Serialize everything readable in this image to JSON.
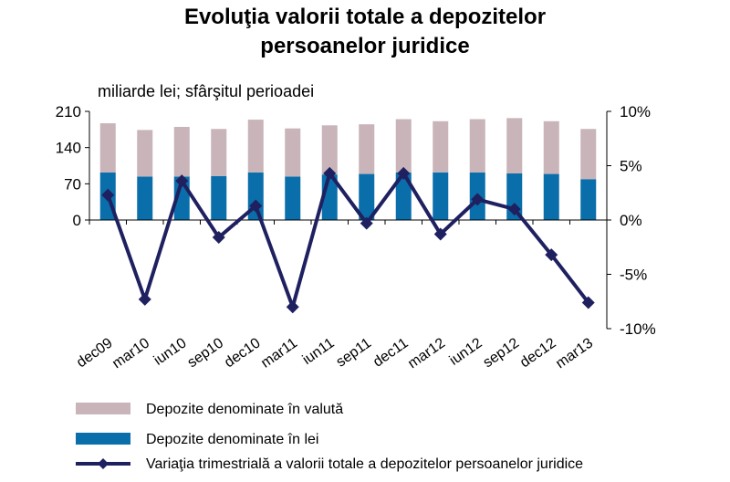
{
  "chart_data": {
    "type": "bar+line",
    "title_line1": "Evoluţia valorii totale a depozitelor",
    "title_line2": "persoanelor juridice",
    "unit_label": "miliarde lei; sfârşitul perioadei",
    "categories": [
      "dec09",
      "mar10",
      "iun10",
      "sep10",
      "dec10",
      "mar11",
      "iun11",
      "sep11",
      "dec11",
      "mar12",
      "iun12",
      "sep12",
      "dec12",
      "mar13"
    ],
    "left_axis": {
      "min": 0,
      "max": 210,
      "ticks": [
        0,
        70,
        140,
        210
      ],
      "tick_labels": [
        "0",
        "70",
        "140",
        "210"
      ]
    },
    "right_axis": {
      "min": -10,
      "max": 10,
      "ticks": [
        -10,
        -5,
        0,
        5,
        10
      ],
      "tick_labels": [
        "-10%",
        "-5%",
        "0%",
        "5%",
        "10%"
      ]
    },
    "series": [
      {
        "name": "Depozite denominate în lei",
        "kind": "stacked-bar",
        "axis": "left",
        "color": "#0A6EAA",
        "values": [
          92,
          84,
          84,
          85,
          92,
          84,
          88,
          89,
          92,
          92,
          92,
          90,
          89,
          79
        ]
      },
      {
        "name": "Depozite denominate în valută",
        "kind": "stacked-bar",
        "axis": "left",
        "color": "#C8B4B9",
        "values": [
          95,
          90,
          96,
          91,
          102,
          93,
          95,
          96,
          103,
          99,
          103,
          107,
          102,
          97
        ]
      },
      {
        "name": "Variaţia trimestrială a valorii totale a depozitelor persoanelor juridice",
        "kind": "line",
        "axis": "right",
        "color": "#1F2060",
        "values": [
          2.3,
          -7.3,
          3.6,
          -1.6,
          1.3,
          -8.0,
          4.3,
          -0.3,
          4.3,
          -1.3,
          1.9,
          1.0,
          -3.2,
          -7.6
        ]
      }
    ],
    "legend_position": "bottom",
    "grid": false
  }
}
